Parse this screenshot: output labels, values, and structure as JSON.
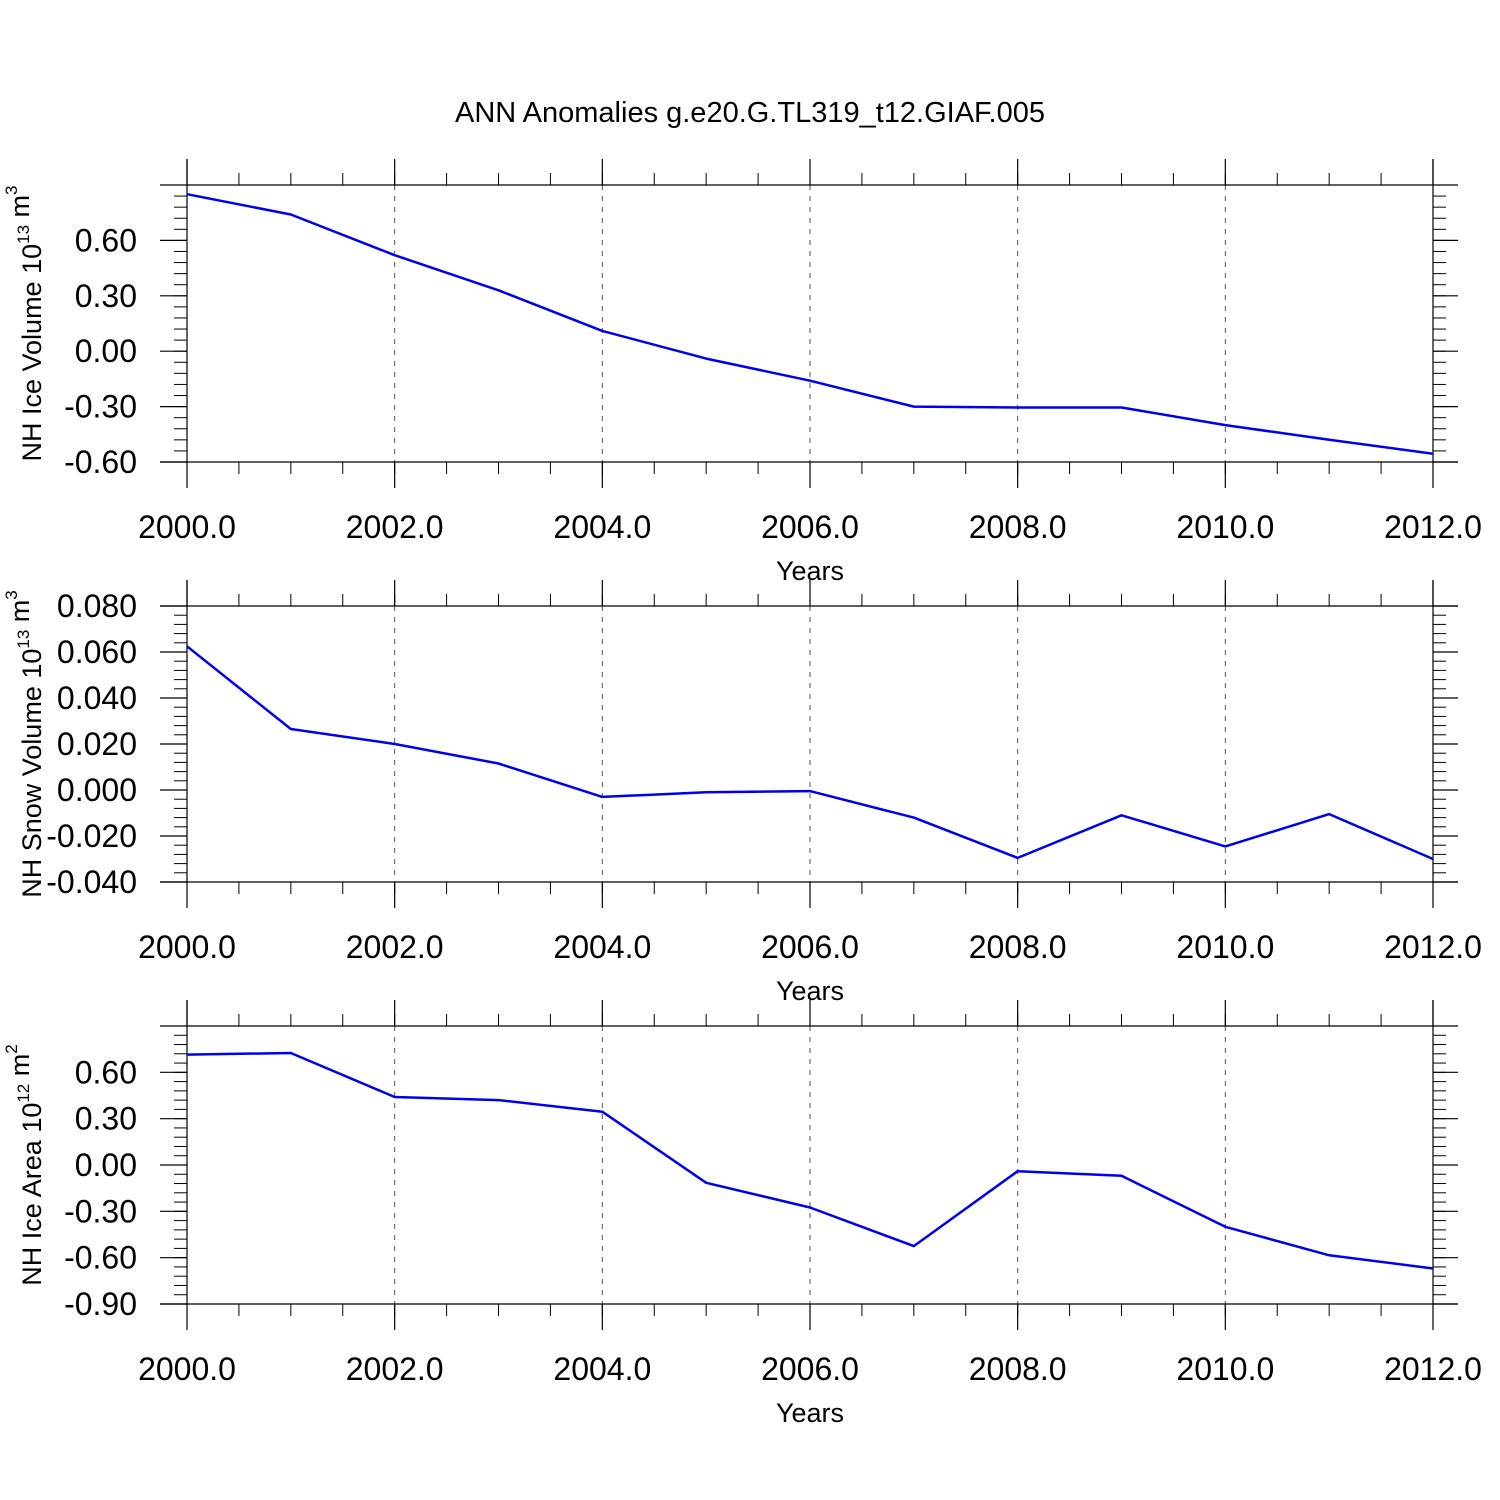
{
  "title": "ANN Anomalies g.e20.G.TL319_t12.GIAF.005",
  "colors": {
    "series": "#0000ee",
    "axis": "#000000",
    "grid": "#555555"
  },
  "chart_data": [
    {
      "type": "line",
      "ylabel": {
        "base": "NH Ice Volume 10",
        "exp": "13",
        "unit": " m",
        "unit_exp": "3"
      },
      "xlabel": "Years",
      "x": [
        2000,
        2001,
        2002,
        2003,
        2004,
        2005,
        2006,
        2007,
        2008,
        2009,
        2010,
        2011,
        2012
      ],
      "series": [
        {
          "name": "NH Ice Volume",
          "values": [
            0.85,
            0.74,
            0.52,
            0.33,
            0.11,
            -0.04,
            -0.16,
            -0.3,
            -0.305,
            -0.305,
            -0.4,
            -0.48,
            -0.555
          ]
        }
      ],
      "xlim": [
        2000,
        2012
      ],
      "ylim": [
        -0.6,
        0.9
      ],
      "yticks": [
        -0.6,
        -0.3,
        0.0,
        0.3,
        0.6
      ],
      "ytick_labels": [
        "-0.60",
        "-0.30",
        "0.00",
        "0.30",
        "0.60"
      ],
      "xticks": [
        2000,
        2002,
        2004,
        2006,
        2008,
        2010,
        2012
      ],
      "xtick_labels": [
        "2000.0",
        "2002.0",
        "2004.0",
        "2006.0",
        "2008.0",
        "2010.0",
        "2012.0"
      ]
    },
    {
      "type": "line",
      "ylabel": {
        "base": "NH Snow Volume 10",
        "exp": "13",
        "unit": " m",
        "unit_exp": "3"
      },
      "xlabel": "Years",
      "x": [
        2000,
        2001,
        2002,
        2003,
        2004,
        2005,
        2006,
        2007,
        2008,
        2009,
        2010,
        2011,
        2012
      ],
      "series": [
        {
          "name": "NH Snow Volume",
          "values": [
            0.0625,
            0.0265,
            0.02,
            0.0115,
            -0.003,
            -0.001,
            -0.0005,
            -0.012,
            -0.0295,
            -0.011,
            -0.0245,
            -0.0105,
            -0.03
          ]
        }
      ],
      "xlim": [
        2000,
        2012
      ],
      "ylim": [
        -0.04,
        0.08
      ],
      "yticks": [
        -0.04,
        -0.02,
        0.0,
        0.02,
        0.04,
        0.06,
        0.08
      ],
      "ytick_labels": [
        "-0.040",
        "-0.020",
        "0.000",
        "0.020",
        "0.040",
        "0.060",
        "0.080"
      ],
      "xticks": [
        2000,
        2002,
        2004,
        2006,
        2008,
        2010,
        2012
      ],
      "xtick_labels": [
        "2000.0",
        "2002.0",
        "2004.0",
        "2006.0",
        "2008.0",
        "2010.0",
        "2012.0"
      ]
    },
    {
      "type": "line",
      "ylabel": {
        "base": "NH Ice Area 10",
        "exp": "12",
        "unit": " m",
        "unit_exp": "2"
      },
      "xlabel": "Years",
      "x": [
        2000,
        2001,
        2002,
        2003,
        2004,
        2005,
        2006,
        2007,
        2008,
        2009,
        2010,
        2011,
        2012
      ],
      "series": [
        {
          "name": "NH Ice Area",
          "values": [
            0.715,
            0.725,
            0.44,
            0.42,
            0.345,
            -0.115,
            -0.275,
            -0.525,
            -0.04,
            -0.07,
            -0.4,
            -0.585,
            -0.67
          ]
        }
      ],
      "xlim": [
        2000,
        2012
      ],
      "ylim": [
        -0.9,
        0.9
      ],
      "yticks": [
        -0.9,
        -0.6,
        -0.3,
        0.0,
        0.3,
        0.6
      ],
      "ytick_labels": [
        "-0.90",
        "-0.60",
        "-0.30",
        "0.00",
        "0.30",
        "0.60"
      ],
      "xticks": [
        2000,
        2002,
        2004,
        2006,
        2008,
        2010,
        2012
      ],
      "xtick_labels": [
        "2000.0",
        "2002.0",
        "2004.0",
        "2006.0",
        "2008.0",
        "2010.0",
        "2012.0"
      ]
    }
  ]
}
